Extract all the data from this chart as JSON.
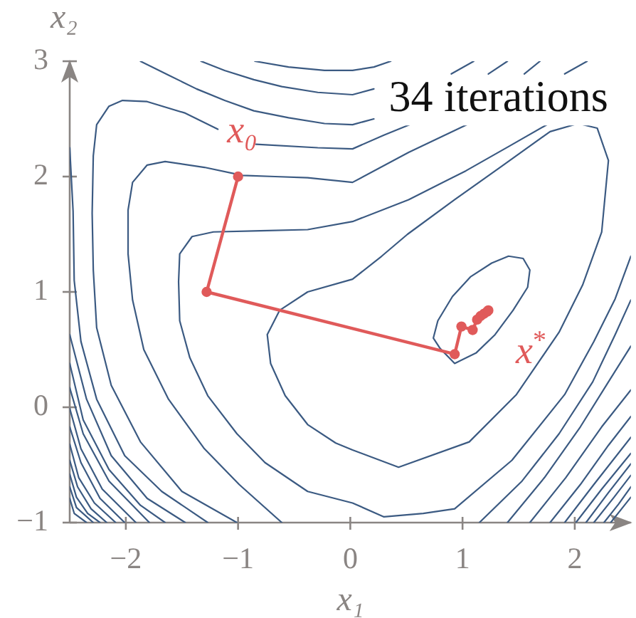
{
  "chart_data": {
    "type": "line",
    "xlabel": "x₁",
    "ylabel": "x₂",
    "xlim": [
      -2.5,
      2.5
    ],
    "xticks": [
      {
        "value": -2,
        "label": "−2"
      },
      {
        "value": -1,
        "label": "−1"
      },
      0,
      1,
      2
    ],
    "ylim": [
      -1,
      3
    ],
    "yticks": [
      {
        "value": -1,
        "label": "−1"
      },
      0,
      1,
      2,
      3
    ],
    "marker": "none",
    "annotations": [
      {
        "text": "x₀",
        "x": -1,
        "y": 2
      },
      {
        "text": "x$^{*}$",
        "x": 1.23,
        "y": 0.84
      },
      "34 iterations"
    ],
    "series": [
      {
        "color": "#e05a5a",
        "marker": "circle",
        "x": [
          -1,
          -1.28,
          0.93,
          0.99,
          1.09,
          1.13,
          1.16,
          1.19,
          1.22,
          1.23
        ],
        "values": [
          2,
          1.0,
          0.46,
          0.7,
          0.67,
          0.76,
          0.79,
          0.81,
          0.83,
          0.84
        ]
      },
      {
        "color": "#3b5a82",
        "x": [
          0.74,
          0.78,
          0.91,
          1.07,
          1.26,
          1.41,
          1.54,
          1.6,
          null,
          0.74,
          0.8,
          0.93,
          1.12,
          1.29,
          1.45,
          1.58,
          1.6,
          null,
          -0.74,
          -0.63,
          -0.38,
          0.02,
          0.28,
          0.51,
          0.93,
          1.35,
          1.78,
          2.03,
          2.2,
          2.3,
          null,
          -0.74,
          -0.71,
          -0.58,
          -0.38,
          -0.13,
          0.02,
          0.43,
          1.06,
          1.48,
          1.86,
          2.07,
          2.24,
          2.3,
          null,
          -1.53,
          -1.52,
          -1.41,
          -1.22,
          -0.8,
          -0.38,
          0.02,
          0.52,
          1.03,
          1.41,
          1.77,
          null,
          -1.53,
          -1.52,
          -1.43,
          -1.27,
          -1.01,
          -0.76,
          -0.38,
          0.02,
          0.3,
          0.65,
          0.93,
          1.44,
          1.91,
          2.17,
          2.36,
          2.5,
          null,
          -1.98,
          -1.94,
          -1.81,
          -1.65,
          -1.3,
          -0.96,
          -0.67,
          -0.38,
          0.02,
          0.52,
          1.06,
          null,
          -1.98,
          -1.98,
          -1.94,
          -1.84,
          -1.62,
          -1.3,
          -0.99,
          -0.61,
          null,
          1.91,
          2.11,
          null,
          1.15,
          1.53,
          1.86,
          2.16,
          2.36,
          2.5,
          null,
          -0.84,
          -0.29,
          0.02,
          0.3,
          0.53,
          null,
          -2.3,
          -2.29,
          -2.26,
          -2.15,
          -2.03,
          -1.81,
          -1.47,
          -1.18,
          null,
          -2.3,
          -2.29,
          -2.26,
          -2.13,
          -1.87,
          -1.5,
          -1.01,
          null,
          1.55,
          1.69,
          null,
          1.4,
          1.73,
          2.05,
          2.3,
          2.5,
          null,
          -1.87,
          -1.62,
          -1.37,
          -1.12,
          -0.86,
          -0.55,
          -0.23,
          0.02,
          0.21,
          null,
          1.23,
          1.4,
          null,
          -2.5,
          -2.47,
          -2.46,
          -2.4,
          -2.26,
          -2.01,
          -1.68,
          -1.27,
          null,
          1.6,
          1.92,
          2.24,
          2.5,
          null,
          -1.33,
          -1.12,
          -0.86,
          -0.61,
          -0.29,
          0.02,
          0.21,
          null,
          0.9,
          1.1,
          null,
          -2.5,
          -2.35,
          -2.13,
          -1.81,
          -1.47,
          null,
          1.78,
          2.05,
          2.3,
          2.5,
          null,
          -0.85,
          -0.55,
          -0.23,
          0.02,
          0.21,
          0.36,
          null,
          -2.5,
          -2.38,
          -2.15,
          -1.87,
          -1.65,
          null,
          1.91,
          2.17,
          2.5,
          null,
          -2.5,
          -2.38,
          -2.15,
          -1.79,
          null,
          2.01,
          2.24,
          2.5,
          null,
          -2.5,
          -2.4,
          -2.21,
          -1.91,
          null,
          2.1,
          2.3,
          2.5,
          null,
          -2.5,
          -2.4,
          -2.23,
          -2.01,
          null,
          2.17,
          2.35,
          2.5,
          null,
          -2.5,
          -2.42,
          -2.28,
          -2.09,
          null,
          2.26,
          2.39,
          2.5,
          null,
          -2.5,
          -2.43,
          -2.31,
          -2.17,
          null,
          2.32,
          2.5,
          null,
          -2.5,
          -2.44,
          -2.34,
          -2.23,
          null,
          -2.5,
          -2.44,
          -2.29,
          null,
          -2.5,
          -2.46,
          -2.35
        ],
        "values": [
          0.6,
          0.75,
          0.96,
          1.13,
          1.25,
          1.31,
          1.29,
          1.19,
          null,
          0.6,
          0.51,
          0.38,
          0.47,
          0.63,
          0.84,
          1.04,
          1.19,
          null,
          0.63,
          0.84,
          1.0,
          1.11,
          1.31,
          1.5,
          1.8,
          2.09,
          2.39,
          2.46,
          2.42,
          2.14,
          null,
          0.63,
          0.38,
          0.1,
          -0.15,
          -0.31,
          -0.37,
          -0.52,
          -0.3,
          0.11,
          0.65,
          1.06,
          1.52,
          2.14,
          null,
          1.09,
          1.33,
          1.48,
          1.52,
          1.53,
          1.54,
          1.61,
          1.8,
          2.05,
          2.26,
          2.46,
          null,
          1.09,
          0.75,
          0.43,
          0.1,
          -0.23,
          -0.48,
          -0.73,
          -0.83,
          -0.95,
          -0.92,
          -0.88,
          -0.46,
          0.11,
          0.57,
          0.94,
          1.31,
          null,
          1.71,
          1.95,
          2.1,
          2.13,
          2.08,
          2.01,
          2.0,
          1.99,
          1.95,
          2.21,
          2.46,
          null,
          1.71,
          1.33,
          0.93,
          0.5,
          0.07,
          -0.36,
          -0.67,
          -1.0,
          null,
          2.89,
          3.0,
          null,
          -1.0,
          -0.64,
          -0.23,
          0.22,
          0.63,
          0.93,
          null,
          2.28,
          2.25,
          2.24,
          2.36,
          2.45,
          null,
          1.68,
          2.18,
          2.45,
          2.61,
          2.66,
          2.65,
          2.55,
          2.41,
          null,
          1.68,
          1.19,
          0.69,
          0.19,
          -0.3,
          -0.73,
          -1.0,
          null,
          2.89,
          3.0,
          null,
          -1.0,
          -0.61,
          -0.17,
          0.22,
          0.53,
          null,
          3.0,
          2.88,
          2.76,
          2.66,
          2.57,
          2.51,
          2.46,
          2.45,
          2.5,
          null,
          2.89,
          3.0,
          null,
          2.25,
          1.7,
          1.1,
          0.57,
          0.07,
          -0.42,
          -0.73,
          -1.0,
          null,
          -1.0,
          -0.61,
          -0.17,
          0.15,
          null,
          3.0,
          2.92,
          2.84,
          2.78,
          2.73,
          2.71,
          2.76,
          null,
          2.89,
          3.0,
          null,
          0.63,
          0.07,
          -0.42,
          -0.79,
          -1.0,
          null,
          -1.0,
          -0.67,
          -0.33,
          -0.08,
          null,
          3.0,
          2.95,
          2.92,
          2.92,
          2.95,
          3.0,
          null,
          0.38,
          -0.11,
          -0.54,
          -0.85,
          -1.0,
          null,
          -1.0,
          -0.67,
          -0.26,
          null,
          0.17,
          -0.23,
          -0.64,
          -1.0,
          null,
          -1.0,
          -0.71,
          -0.4,
          null,
          -0.01,
          -0.36,
          -0.71,
          -1.0,
          null,
          -1.0,
          -0.74,
          -0.49,
          null,
          -0.17,
          -0.48,
          -0.79,
          -1.0,
          null,
          -1.0,
          -0.78,
          -0.59,
          null,
          -0.32,
          -0.61,
          -0.83,
          -1.0,
          null,
          -1.0,
          -0.84,
          -0.69,
          null,
          -0.46,
          -0.69,
          -0.88,
          -1.0,
          null,
          -1.0,
          -0.78,
          null,
          -0.58,
          -0.78,
          -0.92,
          -1.0,
          null,
          -0.69,
          -0.87,
          -1.0,
          null,
          -0.79,
          -0.92,
          -1.0
        ]
      }
    ]
  }
}
